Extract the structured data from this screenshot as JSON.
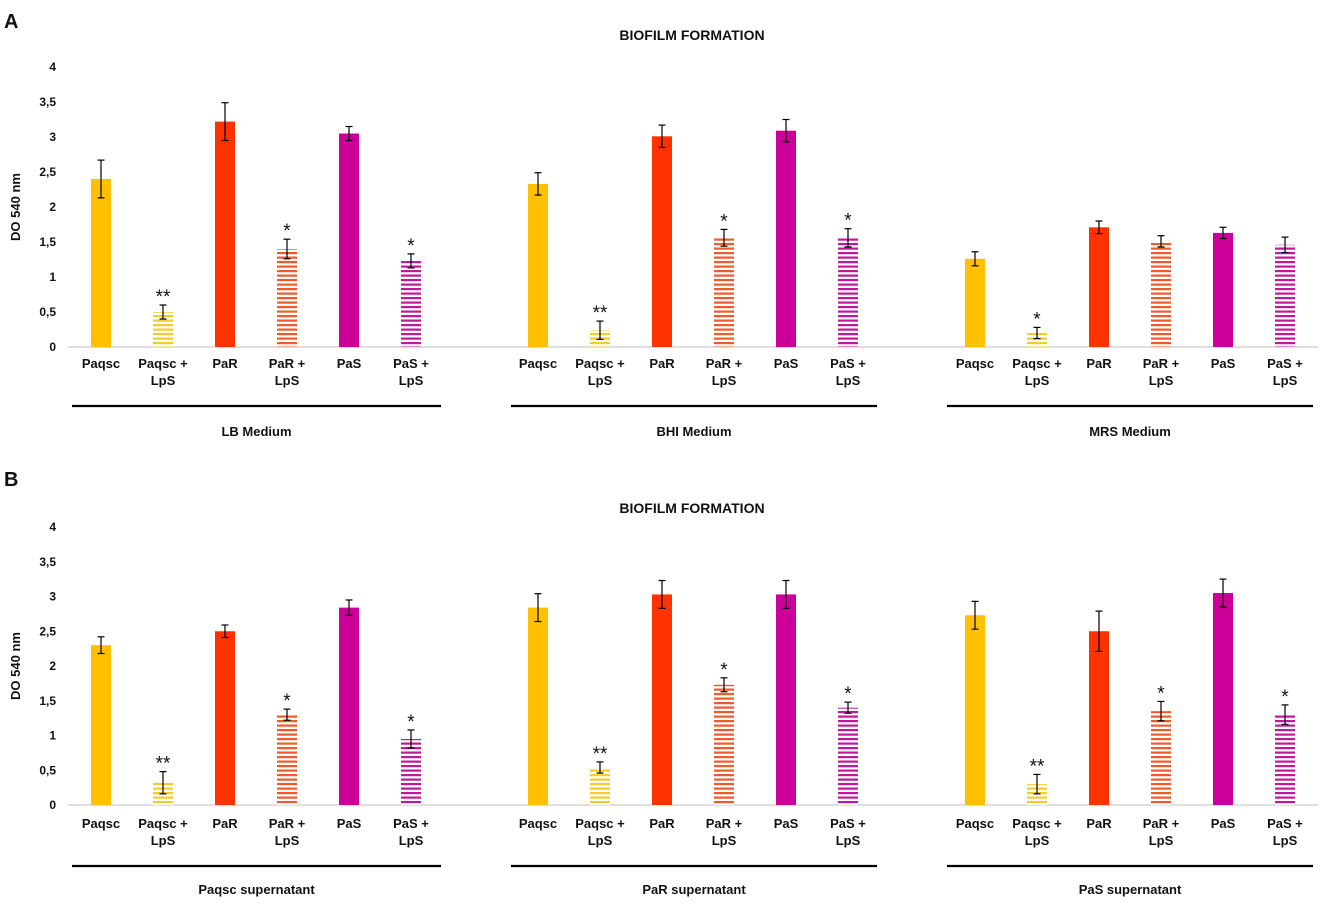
{
  "colors": {
    "Paqsc": "#FFC000",
    "PaR": "#FF3300",
    "PaS": "#CC0099",
    "Paqsc + LpS": "#F4CC2A",
    "PaR + LpS": "#F05A2A",
    "PaS + LpS": "#C0189A"
  },
  "chart_data": [
    {
      "panel": "A",
      "type": "bar",
      "title": "BIOFILM FORMATION",
      "ylabel": "DO 540 nm",
      "ylim": [
        0,
        4
      ],
      "yticks": [
        "0",
        "0,5",
        "1",
        "1,5",
        "2",
        "2,5",
        "3",
        "3,5",
        "4"
      ],
      "legend": "none",
      "groups": [
        {
          "label": "LB Medium",
          "bars": [
            {
              "label": "Paqsc",
              "value": 2.4,
              "err": 0.27,
              "sig": "",
              "pattern": "solid",
              "color": "Paqsc"
            },
            {
              "label": "Paqsc + LpS",
              "value": 0.5,
              "err": 0.1,
              "sig": "**",
              "pattern": "striped",
              "color": "Paqsc + LpS"
            },
            {
              "label": "PaR",
              "value": 3.22,
              "err": 0.27,
              "sig": "",
              "pattern": "solid",
              "color": "PaR"
            },
            {
              "label": "PaR + LpS",
              "value": 1.4,
              "err": 0.14,
              "sig": "*",
              "pattern": "striped",
              "color": "PaR + LpS"
            },
            {
              "label": "PaS",
              "value": 3.05,
              "err": 0.1,
              "sig": "",
              "pattern": "solid",
              "color": "PaS"
            },
            {
              "label": "PaS + LpS",
              "value": 1.23,
              "err": 0.1,
              "sig": "*",
              "pattern": "striped",
              "color": "PaS + LpS"
            }
          ]
        },
        {
          "label": "BHI Medium",
          "bars": [
            {
              "label": "Paqsc",
              "value": 2.33,
              "err": 0.16,
              "sig": "",
              "pattern": "solid",
              "color": "Paqsc"
            },
            {
              "label": "Paqsc + LpS",
              "value": 0.24,
              "err": 0.13,
              "sig": "**",
              "pattern": "striped",
              "color": "Paqsc + LpS"
            },
            {
              "label": "PaR",
              "value": 3.01,
              "err": 0.16,
              "sig": "",
              "pattern": "solid",
              "color": "PaR"
            },
            {
              "label": "PaR + LpS",
              "value": 1.56,
              "err": 0.12,
              "sig": "*",
              "pattern": "striped",
              "color": "PaR + LpS"
            },
            {
              "label": "PaS",
              "value": 3.09,
              "err": 0.16,
              "sig": "",
              "pattern": "solid",
              "color": "PaS"
            },
            {
              "label": "PaS + LpS",
              "value": 1.56,
              "err": 0.13,
              "sig": "*",
              "pattern": "striped",
              "color": "PaS + LpS"
            }
          ]
        },
        {
          "label": "MRS Medium",
          "bars": [
            {
              "label": "Paqsc",
              "value": 1.26,
              "err": 0.1,
              "sig": "",
              "pattern": "solid",
              "color": "Paqsc"
            },
            {
              "label": "Paqsc + LpS",
              "value": 0.2,
              "err": 0.08,
              "sig": "*",
              "pattern": "striped",
              "color": "Paqsc + LpS"
            },
            {
              "label": "PaR",
              "value": 1.71,
              "err": 0.09,
              "sig": "",
              "pattern": "solid",
              "color": "PaR"
            },
            {
              "label": "PaR + LpS",
              "value": 1.51,
              "err": 0.08,
              "sig": "",
              "pattern": "striped",
              "color": "PaR + LpS"
            },
            {
              "label": "PaS",
              "value": 1.63,
              "err": 0.08,
              "sig": "",
              "pattern": "solid",
              "color": "PaS"
            },
            {
              "label": "PaS + LpS",
              "value": 1.46,
              "err": 0.11,
              "sig": "",
              "pattern": "striped",
              "color": "PaS + LpS"
            }
          ]
        }
      ]
    },
    {
      "panel": "B",
      "type": "bar",
      "title": "BIOFILM FORMATION",
      "ylabel": "DO 540 nm",
      "ylim": [
        0,
        4
      ],
      "yticks": [
        "0",
        "0,5",
        "1",
        "1,5",
        "2",
        "2,5",
        "3",
        "3,5",
        "4"
      ],
      "legend": "none",
      "groups": [
        {
          "label": "Paqsc supernatant",
          "bars": [
            {
              "label": "Paqsc",
              "value": 2.3,
              "err": 0.12,
              "sig": "",
              "pattern": "solid",
              "color": "Paqsc"
            },
            {
              "label": "Paqsc + LpS",
              "value": 0.32,
              "err": 0.16,
              "sig": "**",
              "pattern": "striped",
              "color": "Paqsc + LpS"
            },
            {
              "label": "PaR",
              "value": 2.5,
              "err": 0.09,
              "sig": "",
              "pattern": "solid",
              "color": "PaR"
            },
            {
              "label": "PaR + LpS",
              "value": 1.3,
              "err": 0.08,
              "sig": "*",
              "pattern": "striped",
              "color": "PaR + LpS"
            },
            {
              "label": "PaS",
              "value": 2.84,
              "err": 0.11,
              "sig": "",
              "pattern": "solid",
              "color": "PaS"
            },
            {
              "label": "PaS + LpS",
              "value": 0.95,
              "err": 0.13,
              "sig": "*",
              "pattern": "striped",
              "color": "PaS + LpS"
            }
          ]
        },
        {
          "label": "PaR supernatant",
          "bars": [
            {
              "label": "Paqsc",
              "value": 2.84,
              "err": 0.2,
              "sig": "",
              "pattern": "solid",
              "color": "Paqsc"
            },
            {
              "label": "Paqsc + LpS",
              "value": 0.54,
              "err": 0.08,
              "sig": "**",
              "pattern": "striped",
              "color": "Paqsc + LpS"
            },
            {
              "label": "PaR",
              "value": 3.03,
              "err": 0.2,
              "sig": "",
              "pattern": "solid",
              "color": "PaR"
            },
            {
              "label": "PaR + LpS",
              "value": 1.73,
              "err": 0.1,
              "sig": "*",
              "pattern": "striped",
              "color": "PaR + LpS"
            },
            {
              "label": "PaS",
              "value": 3.03,
              "err": 0.2,
              "sig": "",
              "pattern": "solid",
              "color": "PaS"
            },
            {
              "label": "PaS + LpS",
              "value": 1.4,
              "err": 0.08,
              "sig": "*",
              "pattern": "striped",
              "color": "PaS + LpS"
            }
          ]
        },
        {
          "label": "PaS supernatant",
          "bars": [
            {
              "label": "Paqsc",
              "value": 2.73,
              "err": 0.2,
              "sig": "",
              "pattern": "solid",
              "color": "Paqsc"
            },
            {
              "label": "Paqsc + LpS",
              "value": 0.3,
              "err": 0.14,
              "sig": "**",
              "pattern": "striped",
              "color": "Paqsc + LpS"
            },
            {
              "label": "PaR",
              "value": 2.5,
              "err": 0.29,
              "sig": "",
              "pattern": "solid",
              "color": "PaR"
            },
            {
              "label": "PaR + LpS",
              "value": 1.35,
              "err": 0.14,
              "sig": "*",
              "pattern": "striped",
              "color": "PaR + LpS"
            },
            {
              "label": "PaS",
              "value": 3.05,
              "err": 0.2,
              "sig": "",
              "pattern": "solid",
              "color": "PaS"
            },
            {
              "label": "PaS + LpS",
              "value": 1.3,
              "err": 0.14,
              "sig": "*",
              "pattern": "striped",
              "color": "PaS + LpS"
            }
          ]
        }
      ]
    }
  ]
}
